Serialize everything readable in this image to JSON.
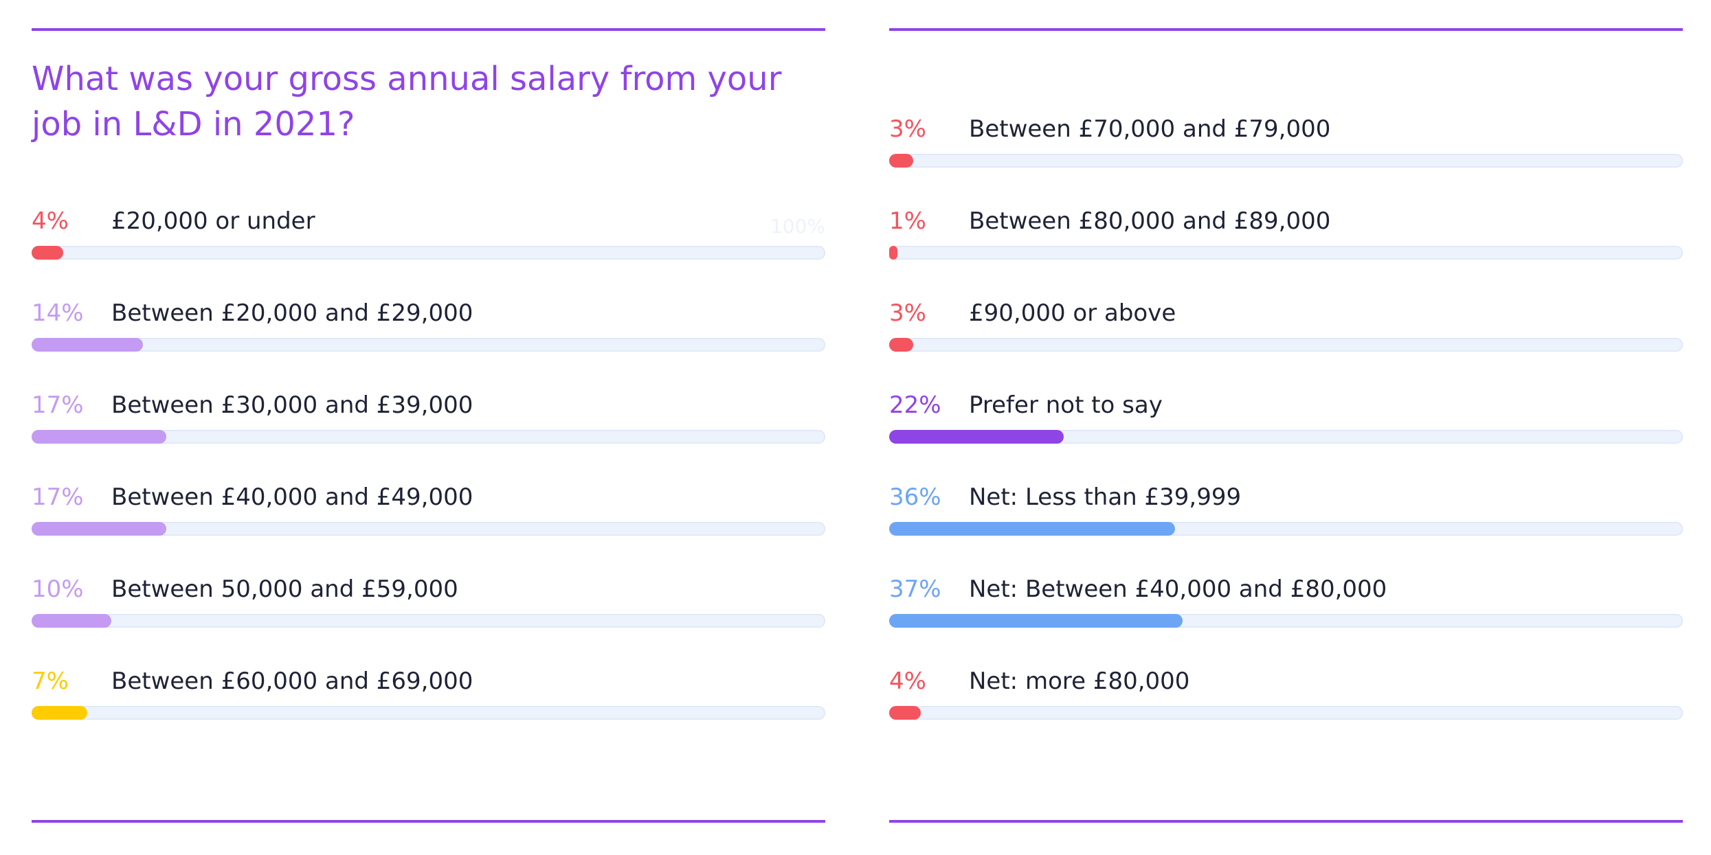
{
  "chart_data": {
    "type": "bar",
    "orientation": "horizontal",
    "title": "What was your gross annual salary from your job in L&D in 2021?",
    "scale_label": "100%",
    "xlim": [
      0,
      100
    ],
    "columns": [
      [
        {
          "pct_label": "4%",
          "value": 4,
          "label": "£20,000 or under",
          "color": "#f4545e"
        },
        {
          "pct_label": "14%",
          "value": 14,
          "label": "Between £20,000 and £29,000",
          "color": "#c39bf3"
        },
        {
          "pct_label": "17%",
          "value": 17,
          "label": "Between £30,000 and £39,000",
          "color": "#c39bf3"
        },
        {
          "pct_label": "17%",
          "value": 17,
          "label": "Between £40,000 and £49,000",
          "color": "#c39bf3"
        },
        {
          "pct_label": "10%",
          "value": 10,
          "label": "Between 50,000 and £59,000",
          "color": "#c39bf3"
        },
        {
          "pct_label": "7%",
          "value": 7,
          "label": "Between £60,000 and £69,000",
          "color": "#ffcc00"
        }
      ],
      [
        {
          "pct_label": "3%",
          "value": 3,
          "label": "Between £70,000 and £79,000",
          "color": "#f4545e"
        },
        {
          "pct_label": "1%",
          "value": 1,
          "label": "Between £80,000 and £89,000",
          "color": "#f4545e"
        },
        {
          "pct_label": "3%",
          "value": 3,
          "label": "£90,000 or above",
          "color": "#f4545e"
        },
        {
          "pct_label": "22%",
          "value": 22,
          "label": "Prefer not to say",
          "color": "#8f44e6"
        },
        {
          "pct_label": "36%",
          "value": 36,
          "label": "Net: Less than £39,999",
          "color": "#6da5f5"
        },
        {
          "pct_label": "37%",
          "value": 37,
          "label": "Net: Between £40,000 and £80,000",
          "color": "#6da5f5"
        },
        {
          "pct_label": "4%",
          "value": 4,
          "label": "Net: more £80,000",
          "color": "#f4545e"
        }
      ]
    ]
  }
}
